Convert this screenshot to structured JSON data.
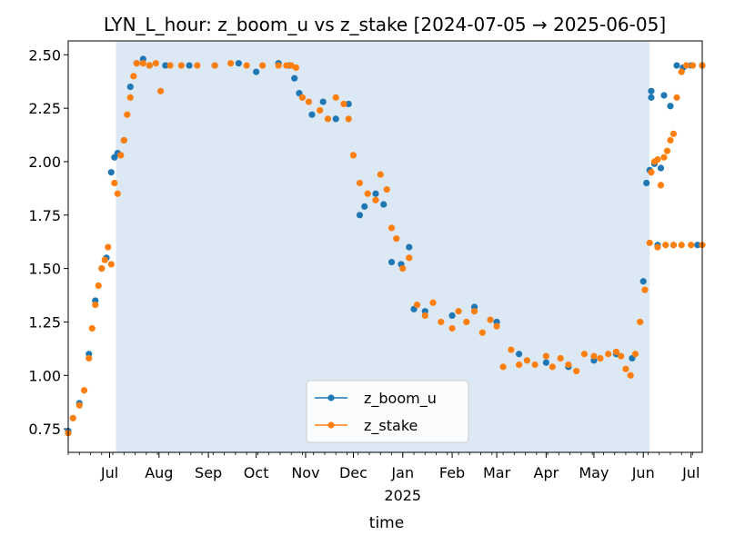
{
  "chart_data": {
    "type": "scatter",
    "title": "LYN_L_hour: z_boom_u vs z_stake  [2024-07-05 → 2025-06-05]",
    "xlabel": "time",
    "ylabel": "",
    "xlim": [
      "2024-06-05",
      "2025-07-08"
    ],
    "ylim": [
      0.64,
      2.565
    ],
    "yticks": [
      0.75,
      1.0,
      1.25,
      1.5,
      1.75,
      2.0,
      2.25,
      2.5
    ],
    "ytick_labels": [
      "0.75",
      "1.00",
      "1.25",
      "1.50",
      "1.75",
      "2.00",
      "2.25",
      "2.50"
    ],
    "xticks": [
      {
        "date": "2024-07-01",
        "label": "Jul"
      },
      {
        "date": "2024-08-01",
        "label": "Aug"
      },
      {
        "date": "2024-09-01",
        "label": "Sep"
      },
      {
        "date": "2024-10-01",
        "label": "Oct"
      },
      {
        "date": "2024-11-01",
        "label": "Nov"
      },
      {
        "date": "2024-12-01",
        "label": "Dec"
      },
      {
        "date": "2025-01-01",
        "label": "Jan",
        "sublabel": "2025"
      },
      {
        "date": "2025-02-01",
        "label": "Feb"
      },
      {
        "date": "2025-03-01",
        "label": "Mar"
      },
      {
        "date": "2025-04-01",
        "label": "Apr"
      },
      {
        "date": "2025-05-01",
        "label": "May"
      },
      {
        "date": "2025-06-01",
        "label": "Jun"
      },
      {
        "date": "2025-07-01",
        "label": "Jul"
      }
    ],
    "shaded_span": {
      "start": "2024-07-05",
      "end": "2025-06-05",
      "color": "#dce8f3"
    },
    "legend": {
      "placement": "lower-center"
    },
    "series": [
      {
        "name": "z_boom_u",
        "color": "#1f77b4",
        "x": [
          "2024-06-05",
          "2024-06-12",
          "2024-06-18",
          "2024-06-22",
          "2024-06-26",
          "2024-06-29",
          "2024-07-02",
          "2024-07-04",
          "2024-07-06",
          "2024-07-10",
          "2024-07-14",
          "2024-07-18",
          "2024-07-22",
          "2024-07-26",
          "2024-08-05",
          "2024-08-20",
          "2024-09-05",
          "2024-09-20",
          "2024-10-01",
          "2024-10-15",
          "2024-10-22",
          "2024-10-25",
          "2024-10-28",
          "2024-11-05",
          "2024-11-12",
          "2024-11-20",
          "2024-11-28",
          "2024-12-05",
          "2024-12-08",
          "2024-12-15",
          "2024-12-20",
          "2024-12-25",
          "2024-12-31",
          "2025-01-05",
          "2025-01-08",
          "2025-01-15",
          "2025-02-01",
          "2025-02-15",
          "2025-03-01",
          "2025-03-15",
          "2025-04-01",
          "2025-04-15",
          "2025-05-01",
          "2025-05-15",
          "2025-05-25",
          "2025-06-01",
          "2025-06-03",
          "2025-06-05",
          "2025-06-06",
          "2025-06-06",
          "2025-06-08",
          "2025-06-12",
          "2025-06-14",
          "2025-06-18",
          "2025-06-22",
          "2025-06-26",
          "2025-07-01",
          "2025-07-08",
          "2025-06-10",
          "2025-06-20",
          "2025-07-05"
        ],
        "y": [
          0.74,
          0.87,
          1.1,
          1.35,
          1.5,
          1.55,
          1.95,
          2.02,
          2.04,
          2.1,
          2.35,
          2.46,
          2.48,
          2.45,
          2.45,
          2.45,
          2.45,
          2.46,
          2.42,
          2.46,
          2.45,
          2.39,
          2.32,
          2.22,
          2.28,
          2.2,
          2.27,
          1.75,
          1.79,
          1.85,
          1.8,
          1.53,
          1.52,
          1.6,
          1.31,
          1.3,
          1.28,
          1.32,
          1.25,
          1.1,
          1.06,
          1.04,
          1.07,
          1.1,
          1.08,
          1.44,
          1.9,
          1.96,
          2.3,
          2.33,
          1.99,
          1.97,
          2.31,
          2.26,
          2.45,
          2.44,
          2.45,
          2.45,
          1.61,
          1.61,
          1.61
        ]
      },
      {
        "name": "z_stake",
        "color": "#ff7f0e",
        "x": [
          "2024-06-05",
          "2024-06-08",
          "2024-06-12",
          "2024-06-15",
          "2024-06-18",
          "2024-06-20",
          "2024-06-22",
          "2024-06-24",
          "2024-06-26",
          "2024-06-28",
          "2024-06-30",
          "2024-07-02",
          "2024-07-04",
          "2024-07-06",
          "2024-07-08",
          "2024-07-10",
          "2024-07-12",
          "2024-07-14",
          "2024-07-16",
          "2024-07-18",
          "2024-07-22",
          "2024-07-26",
          "2024-07-30",
          "2024-08-02",
          "2024-08-08",
          "2024-08-15",
          "2024-08-25",
          "2024-09-05",
          "2024-09-15",
          "2024-09-25",
          "2024-10-05",
          "2024-10-15",
          "2024-10-20",
          "2024-10-23",
          "2024-10-26",
          "2024-10-30",
          "2024-11-03",
          "2024-11-10",
          "2024-11-15",
          "2024-11-20",
          "2024-11-25",
          "2024-11-28",
          "2024-12-01",
          "2024-12-05",
          "2024-12-10",
          "2024-12-15",
          "2024-12-18",
          "2024-12-22",
          "2024-12-25",
          "2024-12-28",
          "2025-01-01",
          "2025-01-05",
          "2025-01-10",
          "2025-01-15",
          "2025-01-20",
          "2025-01-25",
          "2025-02-01",
          "2025-02-05",
          "2025-02-10",
          "2025-02-15",
          "2025-02-20",
          "2025-02-25",
          "2025-03-01",
          "2025-03-05",
          "2025-03-10",
          "2025-03-15",
          "2025-03-20",
          "2025-03-25",
          "2025-04-01",
          "2025-04-05",
          "2025-04-10",
          "2025-04-15",
          "2025-04-20",
          "2025-04-25",
          "2025-05-01",
          "2025-05-05",
          "2025-05-10",
          "2025-05-15",
          "2025-05-18",
          "2025-05-21",
          "2025-05-24",
          "2025-05-27",
          "2025-05-30",
          "2025-06-02",
          "2025-06-05",
          "2025-06-10",
          "2025-06-15",
          "2025-06-20",
          "2025-06-25",
          "2025-07-01",
          "2025-07-08",
          "2025-06-06",
          "2025-06-08",
          "2025-06-10",
          "2025-06-12",
          "2025-06-14",
          "2025-06-16",
          "2025-06-18",
          "2025-06-20",
          "2025-06-22",
          "2025-06-25",
          "2025-06-28",
          "2025-07-02",
          "2025-07-08"
        ],
        "y": [
          0.73,
          0.8,
          0.86,
          0.93,
          1.08,
          1.22,
          1.33,
          1.42,
          1.5,
          1.54,
          1.6,
          1.52,
          1.9,
          1.85,
          2.03,
          2.1,
          2.22,
          2.3,
          2.4,
          2.46,
          2.46,
          2.45,
          2.46,
          2.33,
          2.45,
          2.45,
          2.45,
          2.45,
          2.46,
          2.45,
          2.45,
          2.45,
          2.45,
          2.45,
          2.44,
          2.3,
          2.28,
          2.24,
          2.2,
          2.3,
          2.27,
          2.2,
          2.03,
          1.9,
          1.85,
          1.82,
          1.94,
          1.87,
          1.69,
          1.64,
          1.5,
          1.55,
          1.33,
          1.28,
          1.34,
          1.25,
          1.22,
          1.3,
          1.25,
          1.3,
          1.2,
          1.26,
          1.23,
          1.04,
          1.12,
          1.05,
          1.07,
          1.05,
          1.09,
          1.04,
          1.08,
          1.05,
          1.02,
          1.1,
          1.09,
          1.08,
          1.1,
          1.11,
          1.09,
          1.03,
          1.0,
          1.1,
          1.25,
          1.4,
          1.62,
          1.6,
          1.61,
          1.61,
          1.61,
          1.61,
          1.61,
          1.95,
          2.0,
          2.01,
          1.89,
          2.02,
          2.05,
          2.1,
          2.13,
          2.3,
          2.42,
          2.45,
          2.45,
          2.45
        ]
      }
    ]
  }
}
